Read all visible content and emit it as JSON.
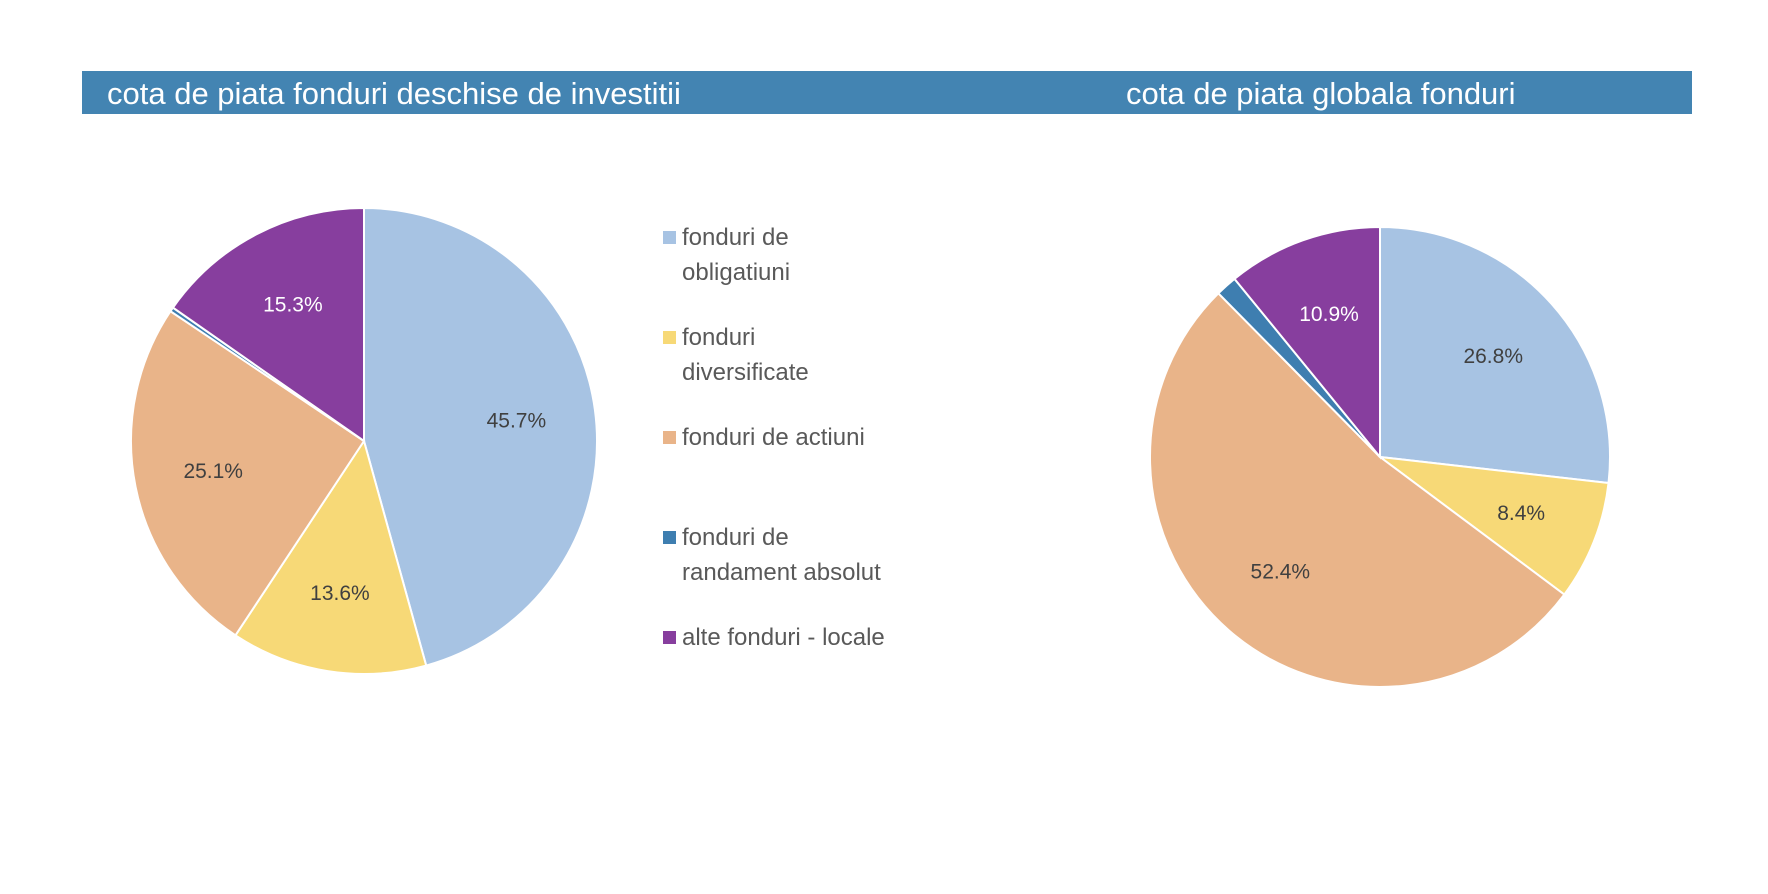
{
  "header": {
    "left_title": "cota de piata fonduri deschise de investitii",
    "right_title": "cota de piata globala fonduri"
  },
  "legend": {
    "items": [
      {
        "label_line1": "fonduri de",
        "label_line2": "obligatiuni",
        "color": "#A7C3E3"
      },
      {
        "label_line1": "fonduri",
        "label_line2": "diversificate",
        "color": "#F7D977"
      },
      {
        "label_line1": "fonduri de actiuni",
        "label_line2": "",
        "color": "#E9B489"
      },
      {
        "label_line1": "fonduri de",
        "label_line2": "randament absolut",
        "color": "#3E7EB0"
      },
      {
        "label_line1": "alte fonduri - locale",
        "label_line2": "",
        "color": "#873E9E"
      }
    ]
  },
  "chart_data": [
    {
      "type": "pie",
      "title": "cota de piata fonduri deschise de investitii",
      "categories": [
        "fonduri de obligatiuni",
        "fonduri diversificate",
        "fonduri de actiuni",
        "fonduri de randament absolut",
        "alte fonduri - locale"
      ],
      "values": [
        45.7,
        13.6,
        25.1,
        0.3,
        15.3
      ],
      "data_labels": [
        "45.7%",
        "13.6%",
        "25.1%",
        "",
        "15.3%"
      ],
      "colors": [
        "#A7C3E3",
        "#F7D977",
        "#E9B489",
        "#3E7EB0",
        "#873E9E"
      ],
      "label_colors": [
        "#404040",
        "#404040",
        "#404040",
        "#404040",
        "#ffffff"
      ],
      "start": "12 o'clock, clockwise",
      "legend_position": "right"
    },
    {
      "type": "pie",
      "title": "cota de piata globala fonduri",
      "categories": [
        "fonduri de obligatiuni",
        "fonduri diversificate",
        "fonduri de actiuni",
        "fonduri de randament absolut",
        "alte fonduri - locale"
      ],
      "values": [
        26.8,
        8.4,
        52.4,
        1.5,
        10.9
      ],
      "data_labels": [
        "26.8%",
        "8.4%",
        "52.4%",
        "",
        "10.9%"
      ],
      "colors": [
        "#A7C3E3",
        "#F7D977",
        "#E9B489",
        "#3E7EB0",
        "#873E9E"
      ],
      "label_colors": [
        "#404040",
        "#404040",
        "#404040",
        "#404040",
        "#ffffff"
      ],
      "start": "12 o'clock, clockwise"
    }
  ]
}
